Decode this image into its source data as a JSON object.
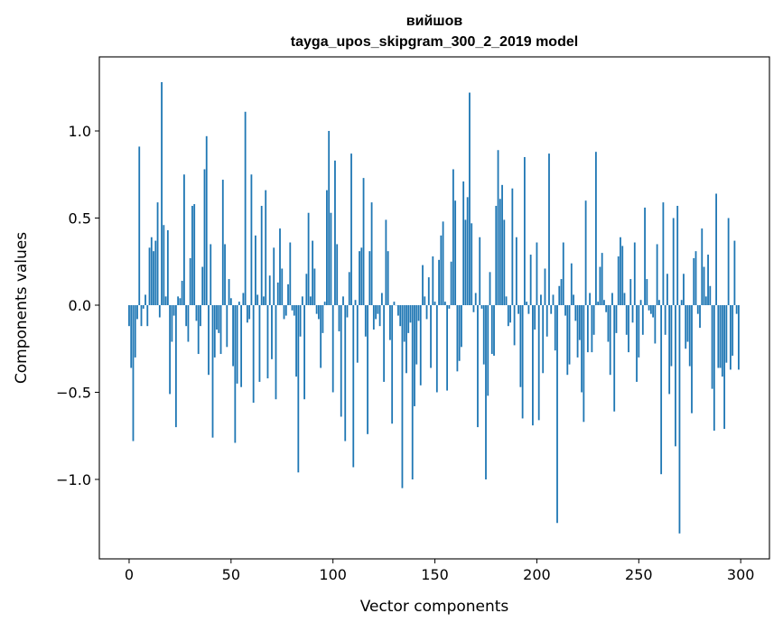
{
  "chart_data": {
    "type": "bar",
    "title": "вийшов",
    "subtitle": "tayga_upos_skipgram_300_2_2019 model",
    "xlabel": "Vector components",
    "ylabel": "Components values",
    "xlim": [
      -14.6,
      314.1
    ],
    "ylim": [
      -1.456,
      1.425
    ],
    "xticks": [
      0,
      50,
      100,
      150,
      200,
      250,
      300
    ],
    "xtick_labels": [
      "0",
      "50",
      "100",
      "150",
      "200",
      "250",
      "300"
    ],
    "yticks": [
      -1.0,
      -0.5,
      0.0,
      0.5,
      1.0
    ],
    "ytick_labels": [
      "−1.0",
      "−0.5",
      "0.0",
      "0.5",
      "1.0"
    ],
    "grid": false,
    "color": "#1f77b4",
    "values": [
      -0.12,
      -0.36,
      -0.78,
      -0.3,
      -0.08,
      0.91,
      -0.12,
      -0.02,
      0.06,
      -0.12,
      0.33,
      0.39,
      0.31,
      0.37,
      0.59,
      -0.07,
      1.28,
      0.46,
      0.05,
      0.43,
      -0.51,
      -0.21,
      -0.06,
      -0.7,
      0.05,
      0.04,
      0.14,
      0.75,
      -0.12,
      -0.21,
      0.27,
      0.57,
      0.58,
      -0.09,
      -0.28,
      -0.12,
      0.22,
      0.78,
      0.97,
      -0.4,
      0.35,
      -0.76,
      -0.3,
      -0.14,
      -0.16,
      -0.28,
      0.72,
      0.35,
      -0.24,
      0.15,
      0.04,
      -0.35,
      -0.79,
      -0.45,
      0.02,
      -0.47,
      0.07,
      1.11,
      -0.1,
      -0.08,
      0.75,
      -0.56,
      0.4,
      0.06,
      -0.44,
      0.57,
      0.05,
      0.66,
      -0.42,
      0.17,
      -0.31,
      0.33,
      -0.54,
      0.13,
      0.44,
      0.21,
      -0.08,
      -0.06,
      0.12,
      0.36,
      -0.03,
      -0.06,
      -0.41,
      -0.96,
      -0.18,
      0.05,
      -0.54,
      0.18,
      0.53,
      0.05,
      0.37,
      0.21,
      -0.05,
      -0.08,
      -0.36,
      -0.16,
      0.02,
      0.66,
      1.0,
      0.53,
      -0.5,
      0.83,
      0.35,
      -0.15,
      -0.64,
      0.05,
      -0.78,
      -0.07,
      0.19,
      0.87,
      -0.93,
      0.03,
      -0.33,
      0.31,
      0.33,
      0.73,
      -0.18,
      -0.74,
      0.31,
      0.59,
      -0.14,
      -0.08,
      -0.05,
      -0.12,
      0.07,
      -0.44,
      0.49,
      0.31,
      -0.2,
      -0.68,
      0.02,
      0.0,
      -0.06,
      -0.12,
      -1.05,
      -0.21,
      -0.39,
      -0.16,
      -0.1,
      -1.0,
      -0.58,
      -0.34,
      -0.09,
      -0.46,
      0.23,
      0.05,
      -0.08,
      0.16,
      -0.36,
      0.28,
      0.02,
      -0.5,
      0.26,
      0.4,
      0.48,
      0.02,
      -0.49,
      -0.02,
      0.25,
      0.78,
      0.6,
      -0.38,
      -0.32,
      -0.24,
      0.71,
      0.49,
      0.62,
      1.22,
      0.47,
      -0.04,
      0.07,
      -0.7,
      0.39,
      -0.02,
      -0.34,
      -1.0,
      -0.52,
      0.19,
      -0.28,
      -0.29,
      0.57,
      0.89,
      0.61,
      0.69,
      0.49,
      0.05,
      -0.12,
      -0.1,
      0.67,
      -0.23,
      0.39,
      -0.05,
      -0.47,
      -0.65,
      0.85,
      0.02,
      -0.05,
      0.29,
      -0.69,
      -0.14,
      0.36,
      -0.66,
      0.06,
      -0.39,
      0.21,
      -0.18,
      0.87,
      -0.05,
      0.06,
      -0.26,
      -1.25,
      0.11,
      0.15,
      0.36,
      -0.06,
      -0.4,
      -0.34,
      0.24,
      0.06,
      -0.09,
      -0.3,
      -0.2,
      -0.5,
      -0.67,
      0.6,
      -0.27,
      0.07,
      -0.27,
      -0.17,
      0.88,
      0.02,
      0.22,
      0.3,
      0.03,
      -0.04,
      -0.21,
      -0.4,
      0.07,
      -0.61,
      -0.16,
      0.28,
      0.39,
      0.34,
      0.07,
      -0.17,
      -0.27,
      0.15,
      -0.1,
      0.36,
      -0.44,
      -0.3,
      0.03,
      -0.17,
      0.56,
      0.15,
      -0.03,
      -0.05,
      -0.07,
      -0.22,
      0.35,
      0.03,
      -0.97,
      0.59,
      -0.17,
      0.18,
      -0.51,
      -0.35,
      0.5,
      -0.81,
      0.57,
      -1.31,
      0.03,
      0.18,
      -0.25,
      -0.21,
      -0.35,
      -0.62,
      0.27,
      0.31,
      -0.05,
      -0.13,
      0.44,
      0.22,
      0.05,
      0.29,
      0.11,
      -0.48,
      -0.72,
      0.64,
      -0.36,
      -0.36,
      -0.41,
      -0.71,
      -0.33,
      0.5,
      -0.37,
      -0.29,
      0.37,
      -0.05,
      -0.37
    ]
  }
}
